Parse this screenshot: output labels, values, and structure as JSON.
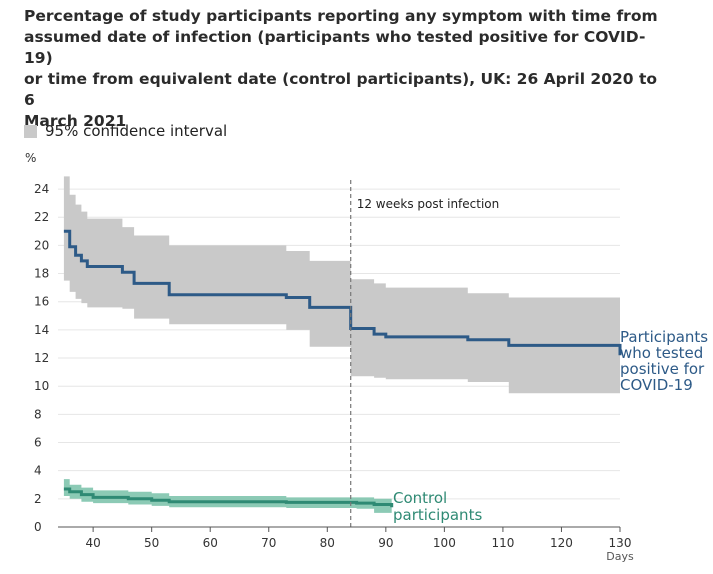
{
  "chart_data": {
    "type": "line",
    "title": "Percentage of study participants reporting any symptom with time from assumed date of infection (participants who tested positive for COVID-19) or time from equivalent date (control participants), UK: 26 April 2020 to 6 March 2021",
    "title_lines": [
      "Percentage of study participants reporting any symptom with time from",
      "assumed date of infection (participants who tested positive for COVID-19)",
      "or time from equivalent date (control participants), UK: 26 April 2020 to 6",
      "March 2021"
    ],
    "legend": [
      {
        "label": "95% confidence interval",
        "color": "#c9c9c9"
      }
    ],
    "ylabel": "%",
    "xlabel": "Days",
    "xlim": [
      34,
      130
    ],
    "ylim": [
      0,
      25
    ],
    "xticks": [
      40,
      50,
      60,
      70,
      80,
      90,
      100,
      110,
      120,
      130
    ],
    "yticks": [
      0,
      2,
      4,
      6,
      8,
      10,
      12,
      14,
      16,
      18,
      20,
      22,
      24
    ],
    "grid": "horizontal",
    "annotation": {
      "x": 84,
      "label": "12 weeks post infection"
    },
    "series": [
      {
        "name": "Participants who tested positive for COVID-19",
        "label_lines": [
          "Participants",
          "who tested",
          "positive for",
          "COVID-19"
        ],
        "color": "#2d5a87",
        "band_color": "#c9c9c9",
        "step_x": [
          35,
          36,
          37,
          38,
          39,
          45,
          47,
          53,
          73,
          77,
          84,
          88,
          90,
          104,
          111,
          130
        ],
        "step_y": [
          21.0,
          19.9,
          19.3,
          18.9,
          18.5,
          18.1,
          17.3,
          16.5,
          16.3,
          15.6,
          14.1,
          13.7,
          13.5,
          13.3,
          12.9,
          12.2
        ],
        "ci_upper": [
          24.9,
          23.6,
          22.9,
          22.4,
          21.9,
          21.3,
          20.7,
          20.0,
          19.6,
          18.9,
          17.6,
          17.3,
          17.0,
          16.6,
          16.3,
          16.0
        ],
        "ci_lower": [
          17.5,
          16.7,
          16.2,
          15.9,
          15.6,
          15.5,
          14.8,
          14.4,
          14.0,
          12.8,
          10.7,
          10.6,
          10.5,
          10.3,
          9.5,
          9.4
        ]
      },
      {
        "name": "Control participants",
        "label_lines": [
          "Control",
          "participants"
        ],
        "color": "#2f8a74",
        "band_color": "#7fc4ad",
        "step_x": [
          35,
          36,
          38,
          40,
          46,
          50,
          53,
          73,
          85,
          88,
          91
        ],
        "step_y": [
          2.7,
          2.5,
          2.3,
          2.1,
          2.0,
          1.9,
          1.8,
          1.75,
          1.7,
          1.6,
          1.4
        ],
        "ci_upper": [
          3.4,
          3.0,
          2.8,
          2.6,
          2.5,
          2.4,
          2.2,
          2.1,
          2.1,
          2.0,
          2.0
        ],
        "ci_lower": [
          2.2,
          2.0,
          1.8,
          1.7,
          1.6,
          1.5,
          1.4,
          1.35,
          1.3,
          1.0,
          0.9
        ]
      }
    ]
  }
}
